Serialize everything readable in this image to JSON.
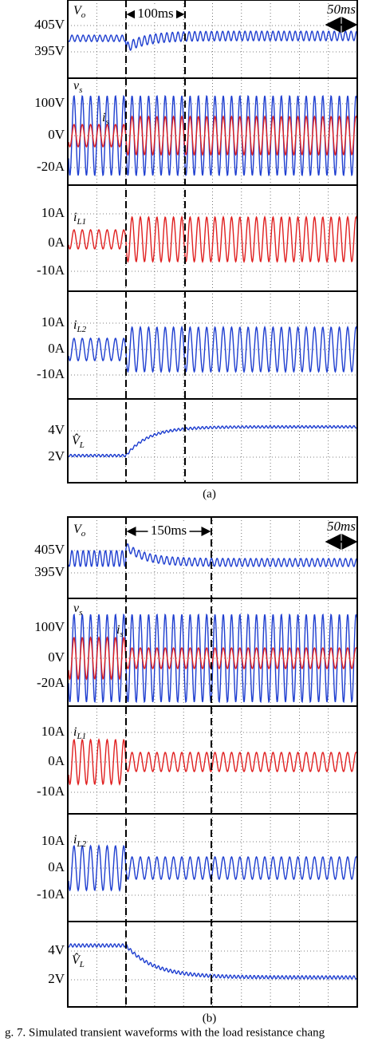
{
  "figures": [
    {
      "label": "(a)",
      "duration_note": "100ms",
      "scale_note": "50ms",
      "panels": [
        {
          "signals": [
            {
              "symbol": "V",
              "subscript": "o"
            }
          ],
          "tick_labels": [
            "405V",
            "395V"
          ]
        },
        {
          "signals": [
            {
              "symbol": "v",
              "subscript": "s"
            },
            {
              "symbol": "i",
              "subscript": "s"
            }
          ],
          "tick_labels": [
            "100V",
            "0V",
            "-20A"
          ]
        },
        {
          "signals": [
            {
              "symbol": "i",
              "subscript": "L1"
            }
          ],
          "tick_labels": [
            "10A",
            "0A",
            "-10A"
          ]
        },
        {
          "signals": [
            {
              "symbol": "i",
              "subscript": "L2"
            }
          ],
          "tick_labels": [
            "10A",
            "0A",
            "-10A"
          ]
        },
        {
          "signals": [
            {
              "symbol": "V̂",
              "subscript": "L"
            }
          ],
          "tick_labels": [
            "4V",
            "2V"
          ]
        }
      ]
    },
    {
      "label": "(b)",
      "duration_note": "150ms",
      "scale_note": "50ms",
      "panels": [
        {
          "signals": [
            {
              "symbol": "V",
              "subscript": "o"
            }
          ],
          "tick_labels": [
            "405V",
            "395V"
          ]
        },
        {
          "signals": [
            {
              "symbol": "v",
              "subscript": "s"
            },
            {
              "symbol": "i",
              "subscript": "s"
            }
          ],
          "tick_labels": [
            "100V",
            "0V",
            "-20A"
          ]
        },
        {
          "signals": [
            {
              "symbol": "i",
              "subscript": "L1"
            }
          ],
          "tick_labels": [
            "10A",
            "0A",
            "-10A"
          ]
        },
        {
          "signals": [
            {
              "symbol": "i",
              "subscript": "L2"
            }
          ],
          "tick_labels": [
            "10A",
            "0A",
            "-10A"
          ]
        },
        {
          "signals": [
            {
              "symbol": "V̂",
              "subscript": "L"
            }
          ],
          "tick_labels": [
            "4V",
            "2V"
          ]
        }
      ]
    }
  ],
  "caption": "g. 7. Simulated transient waveforms with the load resistance chang"
}
